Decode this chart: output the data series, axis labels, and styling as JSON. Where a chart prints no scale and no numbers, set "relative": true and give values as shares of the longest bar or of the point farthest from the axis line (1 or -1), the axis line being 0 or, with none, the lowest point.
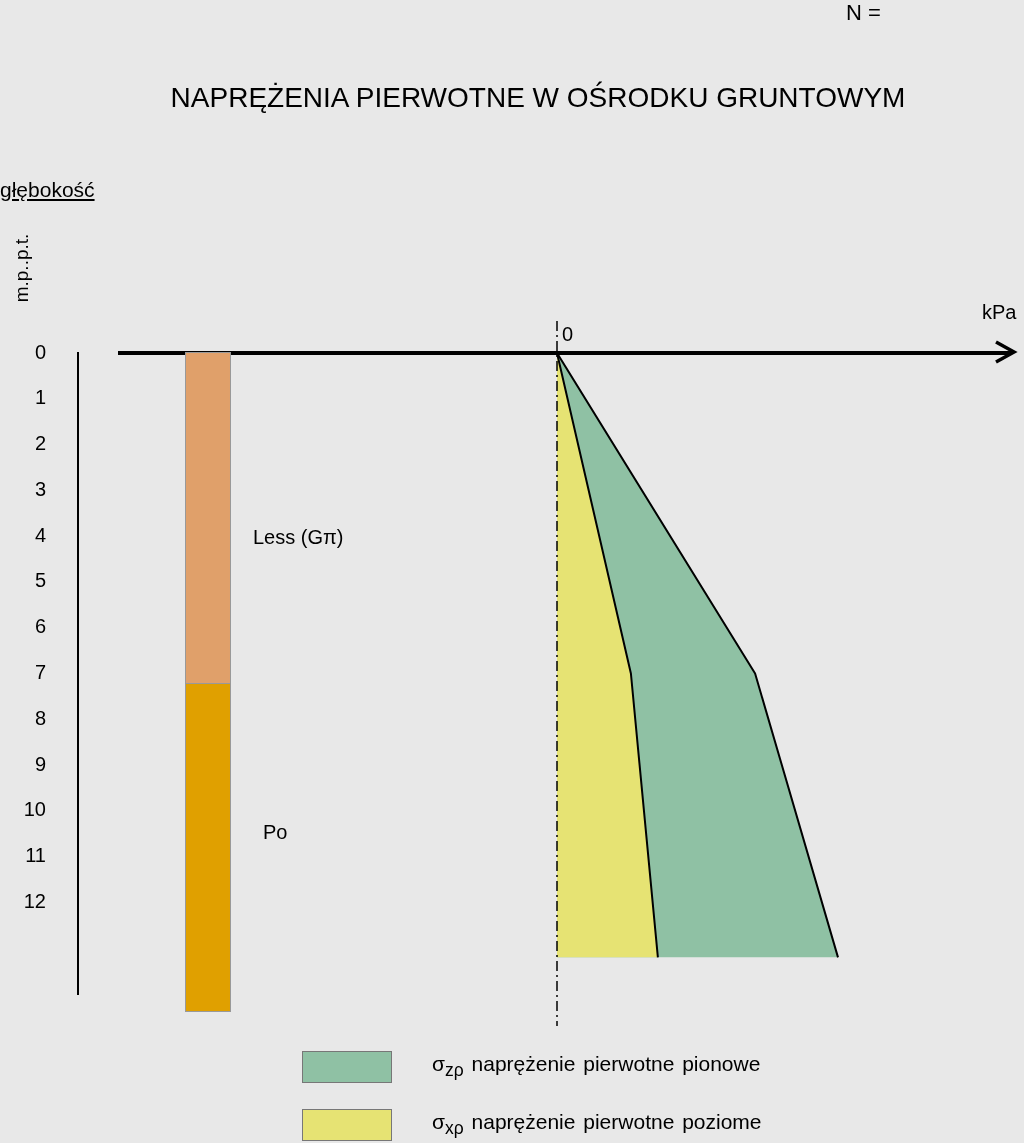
{
  "chart_data": {
    "type": "area",
    "title": "NAPRĘŻENIA PIERWOTNE W OŚRODKU GRUNTOWYM",
    "ylabel": "m.p..p.t.",
    "orientation": "horizontal",
    "relative": true,
    "ylim": [
      14,
      0
    ],
    "yticks": [
      0,
      1,
      2,
      3,
      4,
      5,
      6,
      7,
      8,
      9,
      10,
      11,
      12
    ],
    "tick_labels": "y",
    "legend": "bottom",
    "marker": "none",
    "annotations": [
      "N =",
      "głębokość",
      "0",
      "kPa",
      "Less (Gπ)",
      "Po"
    ],
    "series": [
      {
        "name": "σ$_{zρ}$ naprężenie pierwotne pionowe",
        "color": "#8fc1a4",
        "x": [
          0,
          7,
          13.2
        ],
        "values": [
          0,
          0.705,
          1
        ]
      },
      {
        "name": "σ$_{xρ}$ naprężenie pierwotne poziome",
        "color": "#e6e373",
        "x": [
          0,
          7,
          13.2
        ],
        "values": [
          0,
          0.263,
          0.359
        ]
      }
    ]
  }
}
